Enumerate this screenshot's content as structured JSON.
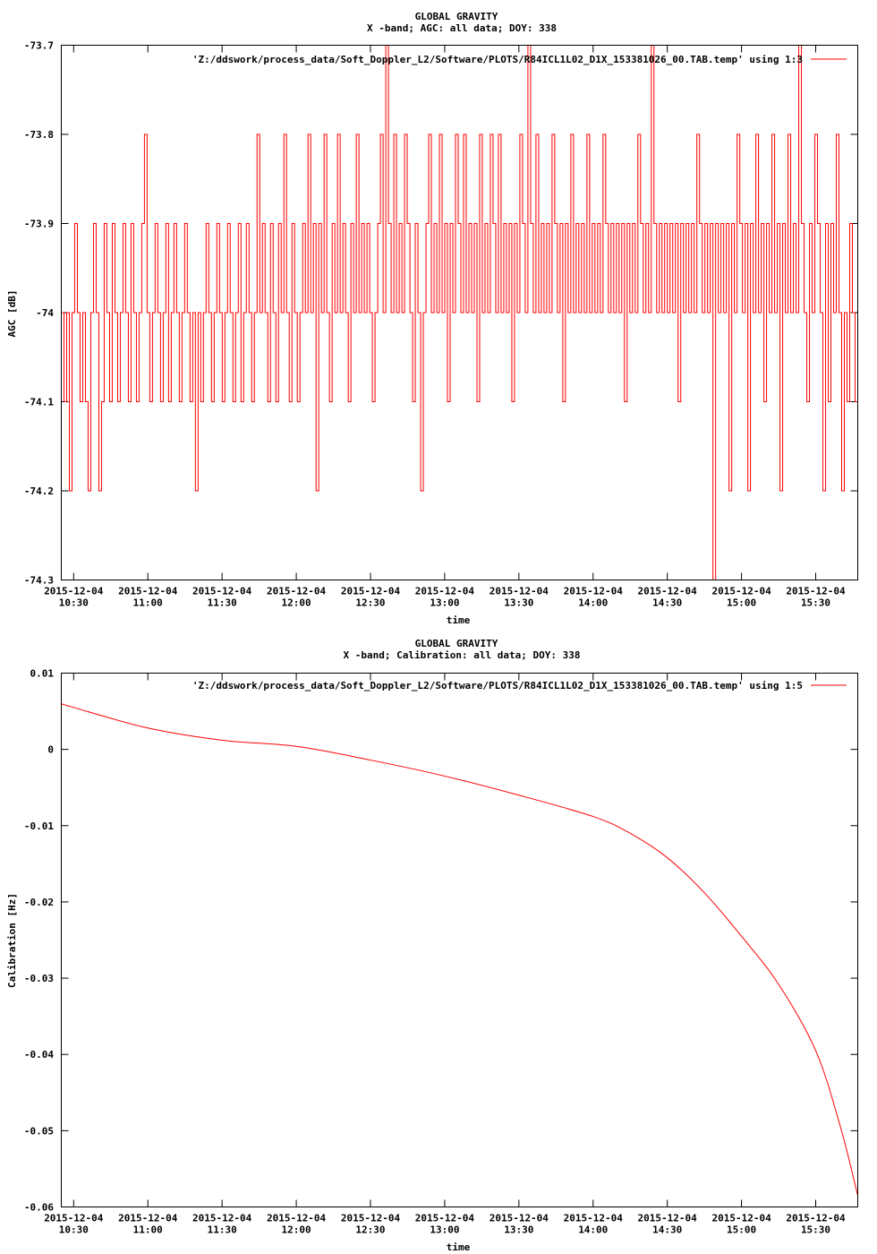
{
  "chart_data": [
    {
      "type": "line",
      "title": "GLOBAL GRAVITY",
      "subtitle": "X -band; AGC: all data; DOY: 338",
      "xlabel": "time",
      "ylabel": "AGC [dB]",
      "ylim": [
        -74.3,
        -73.7
      ],
      "xlim": [
        "2015-12-04 10:25",
        "2015-12-04 15:47"
      ],
      "yticks": [
        "-73.7",
        "-73.8",
        "-73.9",
        "-74",
        "-74.1",
        "-74.2",
        "-74.3"
      ],
      "ytick_values": [
        -73.7,
        -73.8,
        -73.9,
        -74.0,
        -74.1,
        -74.2,
        -74.3
      ],
      "xticks_date": "2015-12-04",
      "xticks_time": [
        "10:30",
        "11:00",
        "11:30",
        "12:00",
        "12:30",
        "13:00",
        "13:30",
        "14:00",
        "14:30",
        "15:00",
        "15:30"
      ],
      "legend_position": "top-right",
      "color": "#ff0000",
      "series": [
        {
          "name": "'Z:/ddswork/process_data/Soft_Doppler_L2/Software/PLOTS/R84ICL1L02_D1X_153381026_00.TAB.temp' using 1:3",
          "step_minutes": 0.25,
          "values": [
            -74.0,
            -74.1,
            -74.0,
            -74.2,
            -74.0,
            -73.9,
            -74.0,
            -74.1,
            -74.0,
            -74.1,
            -74.2,
            -74.0,
            -73.9,
            -74.0,
            -74.2,
            -74.1,
            -73.9,
            -74.0,
            -74.1,
            -73.9,
            -74.0,
            -74.1,
            -74.0,
            -73.9,
            -74.0,
            -74.1,
            -73.9,
            -74.0,
            -74.1,
            -74.0,
            -73.9,
            -73.8,
            -74.0,
            -74.1,
            -74.0,
            -73.9,
            -74.0,
            -74.1,
            -74.0,
            -73.9,
            -74.1,
            -74.0,
            -73.9,
            -74.0,
            -74.1,
            -74.0,
            -73.9,
            -74.0,
            -74.1,
            -74.0,
            -74.2,
            -74.0,
            -74.1,
            -74.0,
            -73.9,
            -74.0,
            -74.1,
            -74.0,
            -73.9,
            -74.0,
            -74.1,
            -74.0,
            -73.9,
            -74.0,
            -74.1,
            -74.0,
            -73.9,
            -74.1,
            -74.0,
            -73.9,
            -74.0,
            -74.1,
            -74.0,
            -73.8,
            -74.0,
            -73.9,
            -74.0,
            -74.1,
            -73.9,
            -74.0,
            -74.1,
            -73.9,
            -74.0,
            -73.8,
            -74.0,
            -74.1,
            -73.9,
            -74.0,
            -74.1,
            -74.0,
            -73.9,
            -74.0,
            -73.8,
            -74.0,
            -73.9,
            -74.2,
            -73.9,
            -74.0,
            -73.8,
            -74.0,
            -74.1,
            -73.9,
            -74.0,
            -73.8,
            -74.0,
            -73.9,
            -74.0,
            -74.1,
            -73.9,
            -74.0,
            -73.8,
            -74.0,
            -73.9,
            -74.0,
            -73.9,
            -74.0,
            -74.1,
            -74.0,
            -73.9,
            -73.8,
            -74.0,
            -73.7,
            -73.9,
            -74.0,
            -73.8,
            -74.0,
            -73.9,
            -74.0,
            -73.8,
            -73.9,
            -74.0,
            -74.1,
            -73.9,
            -74.0,
            -74.2,
            -74.0,
            -73.9,
            -73.8,
            -74.0,
            -73.9,
            -74.0,
            -73.8,
            -74.0,
            -73.9,
            -74.1,
            -73.9,
            -74.0,
            -73.8,
            -73.9,
            -74.0,
            -73.8,
            -74.0,
            -73.9,
            -74.0,
            -73.9,
            -74.1,
            -73.8,
            -74.0,
            -73.9,
            -74.0,
            -73.8,
            -73.9,
            -74.0,
            -73.8,
            -74.0,
            -73.9,
            -74.0,
            -73.9,
            -74.1,
            -73.9,
            -74.0,
            -73.8,
            -73.9,
            -74.0,
            -73.7,
            -73.9,
            -74.0,
            -73.8,
            -74.0,
            -73.9,
            -74.0,
            -73.9,
            -74.0,
            -73.8,
            -73.9,
            -74.0,
            -73.9,
            -74.1,
            -73.9,
            -74.0,
            -73.8,
            -74.0,
            -73.9,
            -74.0,
            -73.9,
            -74.0,
            -73.8,
            -74.0,
            -73.9,
            -74.0,
            -73.9,
            -74.0,
            -73.8,
            -73.9,
            -74.0,
            -73.9,
            -74.0,
            -73.9,
            -74.0,
            -73.9,
            -74.1,
            -73.9,
            -74.0,
            -73.9,
            -74.0,
            -73.8,
            -73.9,
            -74.0,
            -73.9,
            -74.0,
            -73.7,
            -73.9,
            -74.0,
            -73.9,
            -74.0,
            -73.9,
            -74.0,
            -73.9,
            -74.0,
            -73.9,
            -74.1,
            -73.9,
            -74.0,
            -73.9,
            -74.0,
            -73.9,
            -74.0,
            -73.8,
            -73.9,
            -74.0,
            -73.9,
            -74.0,
            -73.9,
            -74.3,
            -73.9,
            -74.0,
            -73.9,
            -74.0,
            -73.9,
            -74.2,
            -73.9,
            -74.0,
            -73.8,
            -73.9,
            -74.0,
            -73.9,
            -74.2,
            -73.9,
            -74.0,
            -73.8,
            -74.0,
            -73.9,
            -74.1,
            -73.9,
            -74.0,
            -73.8,
            -74.0,
            -73.9,
            -74.2,
            -73.9,
            -74.0,
            -73.8,
            -74.0,
            -73.9,
            -74.0,
            -73.7,
            -73.9,
            -74.0,
            -74.1,
            -73.9,
            -74.0,
            -73.8,
            -73.9,
            -74.0,
            -74.2,
            -73.9,
            -74.1,
            -73.9,
            -74.0,
            -73.8,
            -74.0,
            -74.2,
            -74.0,
            -74.1,
            -73.9,
            -74.0,
            -74.1,
            -73.9
          ]
        }
      ]
    },
    {
      "type": "line",
      "title": "GLOBAL GRAVITY",
      "subtitle": "X -band; Calibration: all data; DOY: 338",
      "xlabel": "time",
      "ylabel": "Calibration [Hz]",
      "ylim": [
        -0.06,
        0.01
      ],
      "xlim": [
        "2015-12-04 10:25",
        "2015-12-04 15:47"
      ],
      "yticks": [
        "0.01",
        "0",
        "-0.01",
        "-0.02",
        "-0.03",
        "-0.04",
        "-0.05",
        "-0.06"
      ],
      "ytick_values": [
        0.01,
        0.0,
        -0.01,
        -0.02,
        -0.03,
        -0.04,
        -0.05,
        -0.06
      ],
      "xticks_date": "2015-12-04",
      "xticks_time": [
        "10:30",
        "11:00",
        "11:30",
        "12:00",
        "12:30",
        "13:00",
        "13:30",
        "14:00",
        "14:30",
        "15:00",
        "15:30"
      ],
      "legend_position": "top-right",
      "color": "#ff0000",
      "series": [
        {
          "name": "'Z:/ddswork/process_data/Soft_Doppler_L2/Software/PLOTS/R84ICL1L02_D1X_153381026_00.TAB.temp' using 1:5",
          "x": [
            "10:25",
            "10:30",
            "11:00",
            "11:30",
            "12:00",
            "12:30",
            "13:00",
            "13:30",
            "14:00",
            "14:15",
            "14:30",
            "14:45",
            "15:00",
            "15:15",
            "15:30",
            "15:40",
            "15:47"
          ],
          "values": [
            0.006,
            0.0055,
            0.0028,
            0.0012,
            0.0004,
            -0.0014,
            -0.0035,
            -0.006,
            -0.0088,
            -0.011,
            -0.0142,
            -0.0188,
            -0.0245,
            -0.0308,
            -0.0395,
            -0.0495,
            -0.0585
          ]
        }
      ]
    }
  ]
}
